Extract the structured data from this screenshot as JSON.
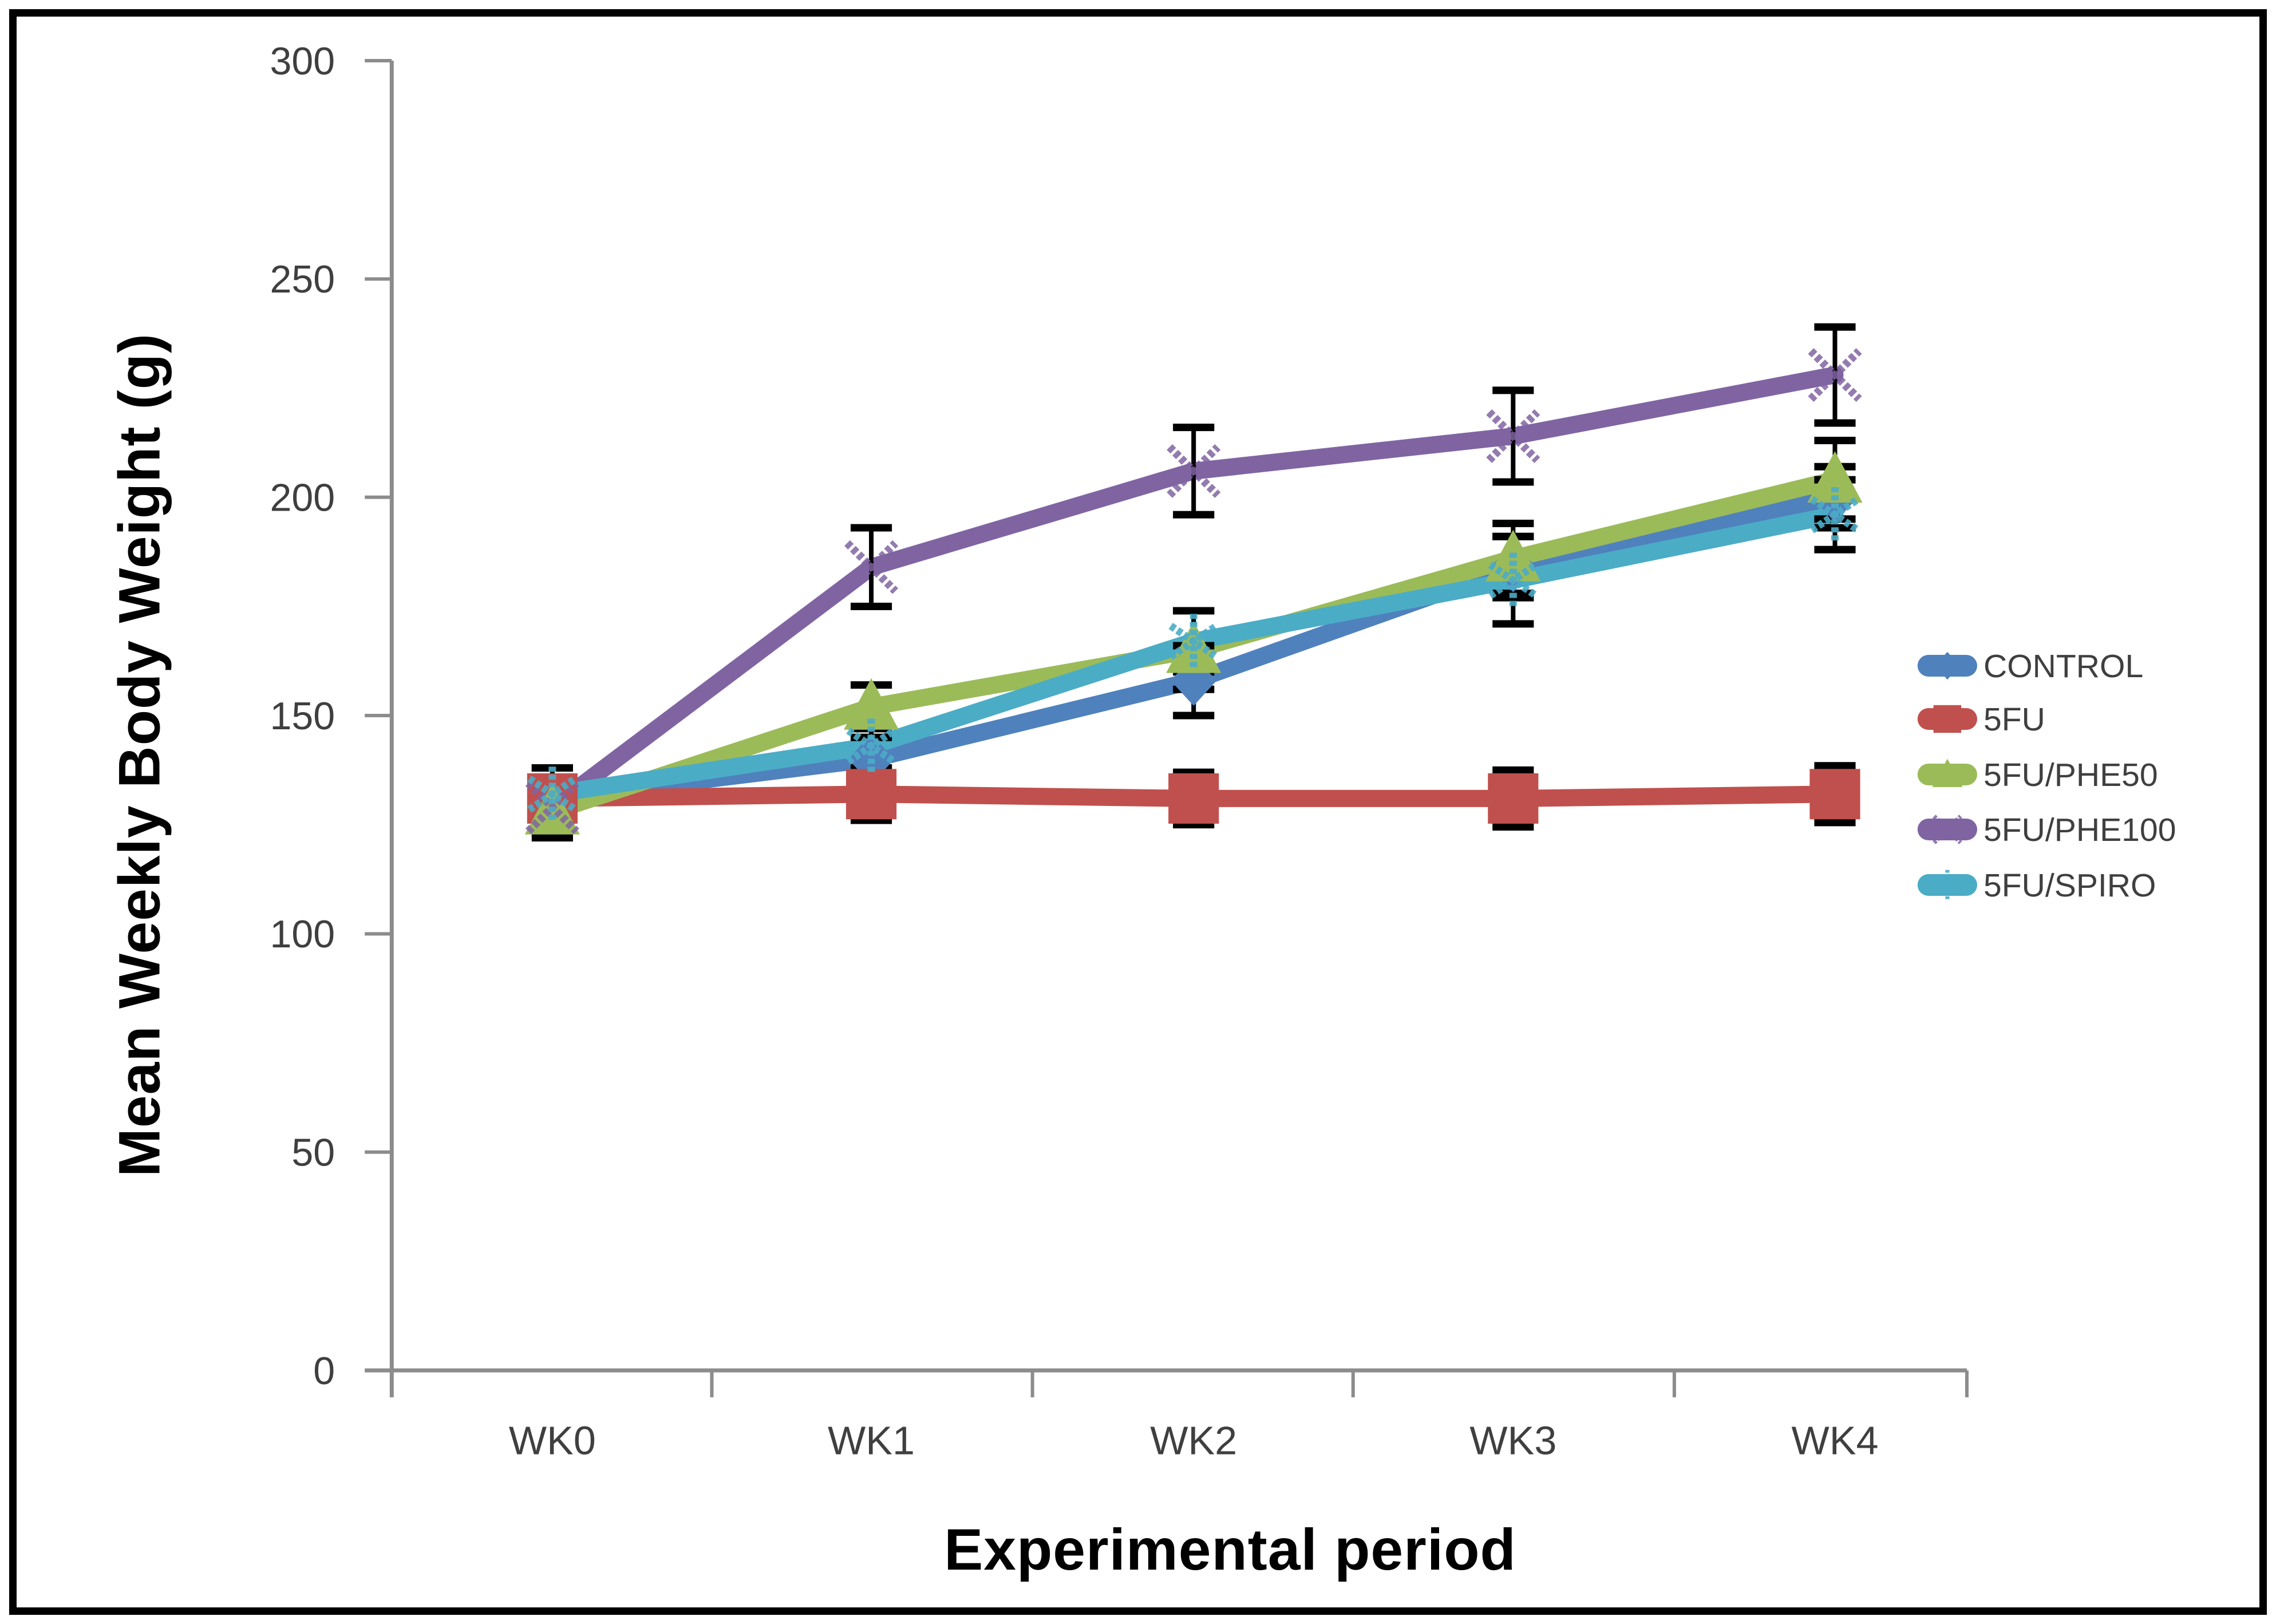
{
  "window": {
    "background": "#ffffff",
    "border_color": "#000000"
  },
  "chart_data": {
    "type": "line",
    "title": "",
    "xlabel": "Experimental period",
    "ylabel": "Mean Weekly Body Weight (g)",
    "categories": [
      "WK0",
      "WK1",
      "WK2",
      "WK3",
      "WK4"
    ],
    "ylim": [
      0,
      300
    ],
    "yticks": [
      0,
      50,
      100,
      150,
      200,
      250,
      300
    ],
    "grid": false,
    "legend_position": "right",
    "axis_color": "#8c8c8c",
    "tick_label_color": "#3f3f3f",
    "error_bar_color": "#000000",
    "has_error_bars": true,
    "series": [
      {
        "name": "CONTROL",
        "color": "#4F81BD",
        "marker": "diamond",
        "values": [
          131,
          140,
          158,
          184,
          200
        ],
        "errors": [
          7,
          5,
          8,
          7,
          7
        ]
      },
      {
        "name": "5FU",
        "color": "#C0504D",
        "marker": "square",
        "values": [
          131,
          132,
          131,
          131,
          132
        ],
        "errors": [
          7,
          6,
          6,
          6.5,
          6.5
        ]
      },
      {
        "name": "5FU/PHE50",
        "color": "#9BBB59",
        "marker": "triangle",
        "values": [
          128,
          152,
          165,
          186,
          204
        ],
        "errors": [
          6,
          5,
          9,
          8,
          9
        ]
      },
      {
        "name": "5FU/PHE100",
        "color": "#8064A2",
        "marker": "x",
        "values": [
          129,
          184,
          206,
          214,
          228
        ],
        "errors": [
          6,
          9,
          10,
          10.5,
          11
        ]
      },
      {
        "name": "5FU/SPIRO",
        "color": "#4BACC6",
        "marker": "asterisk",
        "values": [
          132,
          143,
          167,
          181,
          196
        ],
        "errors": [
          6,
          5,
          7,
          10,
          8
        ]
      }
    ]
  }
}
